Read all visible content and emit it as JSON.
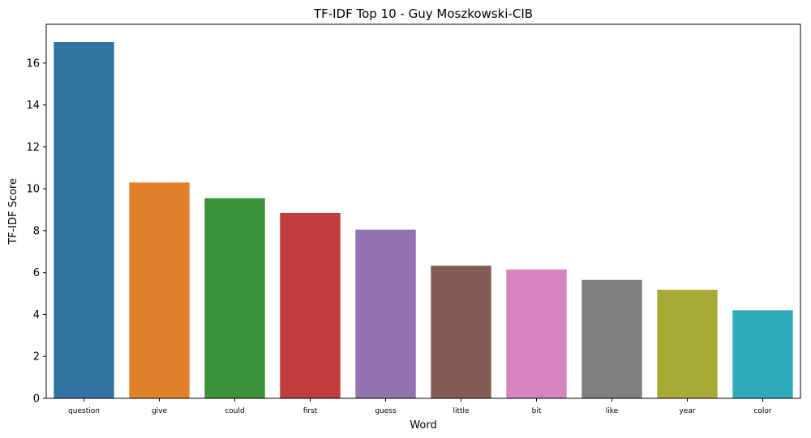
{
  "chart_data": {
    "type": "bar",
    "title": "TF-IDF Top 10 - Guy Moszkowski-CIB",
    "xlabel": "Word",
    "ylabel": "TF-IDF Score",
    "categories": [
      "question",
      "give",
      "could",
      "first",
      "guess",
      "little",
      "bit",
      "like",
      "year",
      "color"
    ],
    "values": [
      17.0,
      10.3,
      9.55,
      8.85,
      8.05,
      6.33,
      6.15,
      5.65,
      5.18,
      4.2
    ],
    "colors": [
      "#3274a1",
      "#e1812c",
      "#3a923a",
      "#c03d3e",
      "#9372b2",
      "#845b53",
      "#d684bd",
      "#7f7f7f",
      "#a9aa35",
      "#2eabb8"
    ],
    "yticks": [
      0,
      2,
      4,
      6,
      8,
      10,
      12,
      14,
      16
    ],
    "ylim": [
      0,
      17.85
    ],
    "grid": false,
    "legend": "none"
  }
}
